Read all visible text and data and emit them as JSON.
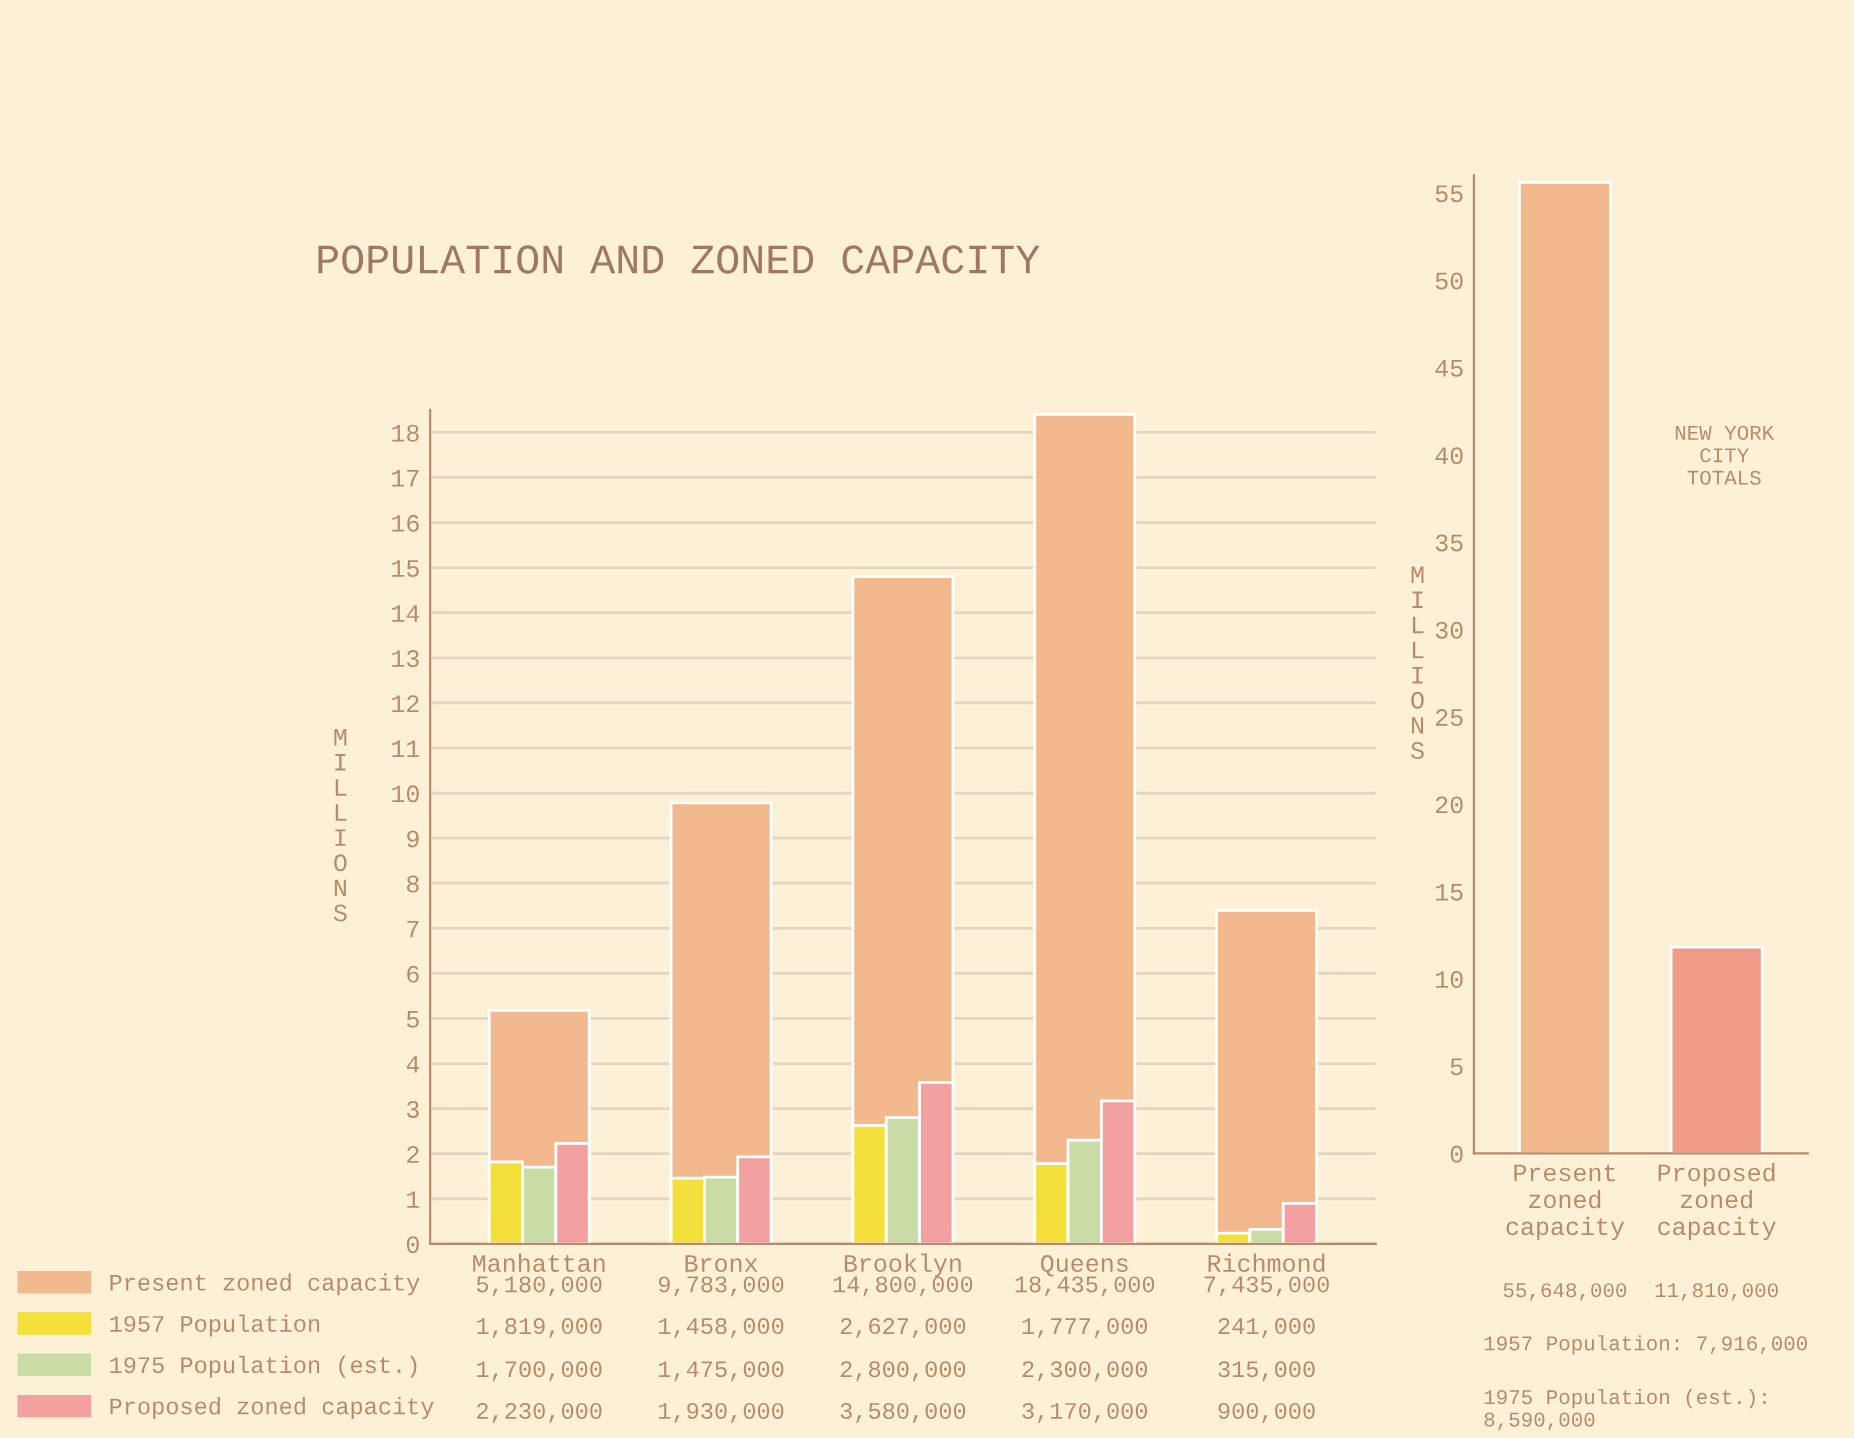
{
  "chart_data": [
    {
      "type": "bar",
      "title": "POPULATION AND ZONED CAPACITY",
      "ylabel": "MILLIONS",
      "categories": [
        "Manhattan",
        "Bronx",
        "Brooklyn",
        "Queens",
        "Richmond"
      ],
      "series": [
        {
          "name": "Present zoned capacity",
          "color": "#f2b98e",
          "values": [
            5.18,
            9.78,
            14.8,
            18.4,
            7.4
          ]
        },
        {
          "name": "1957 Population",
          "color": "#f4e03a",
          "values": [
            1.82,
            1.46,
            2.63,
            1.78,
            0.24
          ]
        },
        {
          "name": "1975 Population (est.)",
          "color": "#c9dca6",
          "values": [
            1.7,
            1.48,
            2.8,
            2.3,
            0.32
          ]
        },
        {
          "name": "Proposed zoned capacity",
          "color": "#f2a0a0",
          "values": [
            2.23,
            1.93,
            3.58,
            3.17,
            0.9
          ]
        }
      ],
      "ylim": [
        0,
        18.5
      ],
      "yticks": [
        0,
        1,
        2,
        3,
        4,
        5,
        6,
        7,
        8,
        9,
        10,
        11,
        12,
        13,
        14,
        15,
        16,
        17,
        18
      ],
      "grid": "y",
      "legend": "bottom left",
      "annotations": [
        "5,180,000",
        "9,783,000",
        "14,800,000",
        "18,435,000",
        "7,435,000",
        "1,819,000",
        "1,458,000",
        "2,627,000",
        "1,777,000",
        "241,000",
        "1,700,000",
        "1,475,000",
        "2,800,000",
        "2,300,000",
        "315,000",
        "2,230,000",
        "1,930,000",
        "3,580,000",
        "3,170,000",
        "900,000"
      ]
    },
    {
      "type": "bar",
      "ylabel": "MILLIONS",
      "categories": [
        "Present\nzoned\ncapacity",
        "Proposed\nzoned\ncapacity"
      ],
      "values": [
        55.6,
        11.8
      ],
      "colors": [
        "#f2b98e",
        "#ee9a86"
      ],
      "ylim": [
        0,
        56
      ],
      "yticks": [
        0,
        5,
        10,
        15,
        20,
        25,
        30,
        35,
        40,
        45,
        50,
        55
      ],
      "annotations": [
        "55,648,000",
        "11,810,000",
        "NEW YORK\nCITY\nTOTALS",
        "1957 Population: 7,916,000",
        "1975 Population (est.):\n8,590,000"
      ]
    }
  ]
}
